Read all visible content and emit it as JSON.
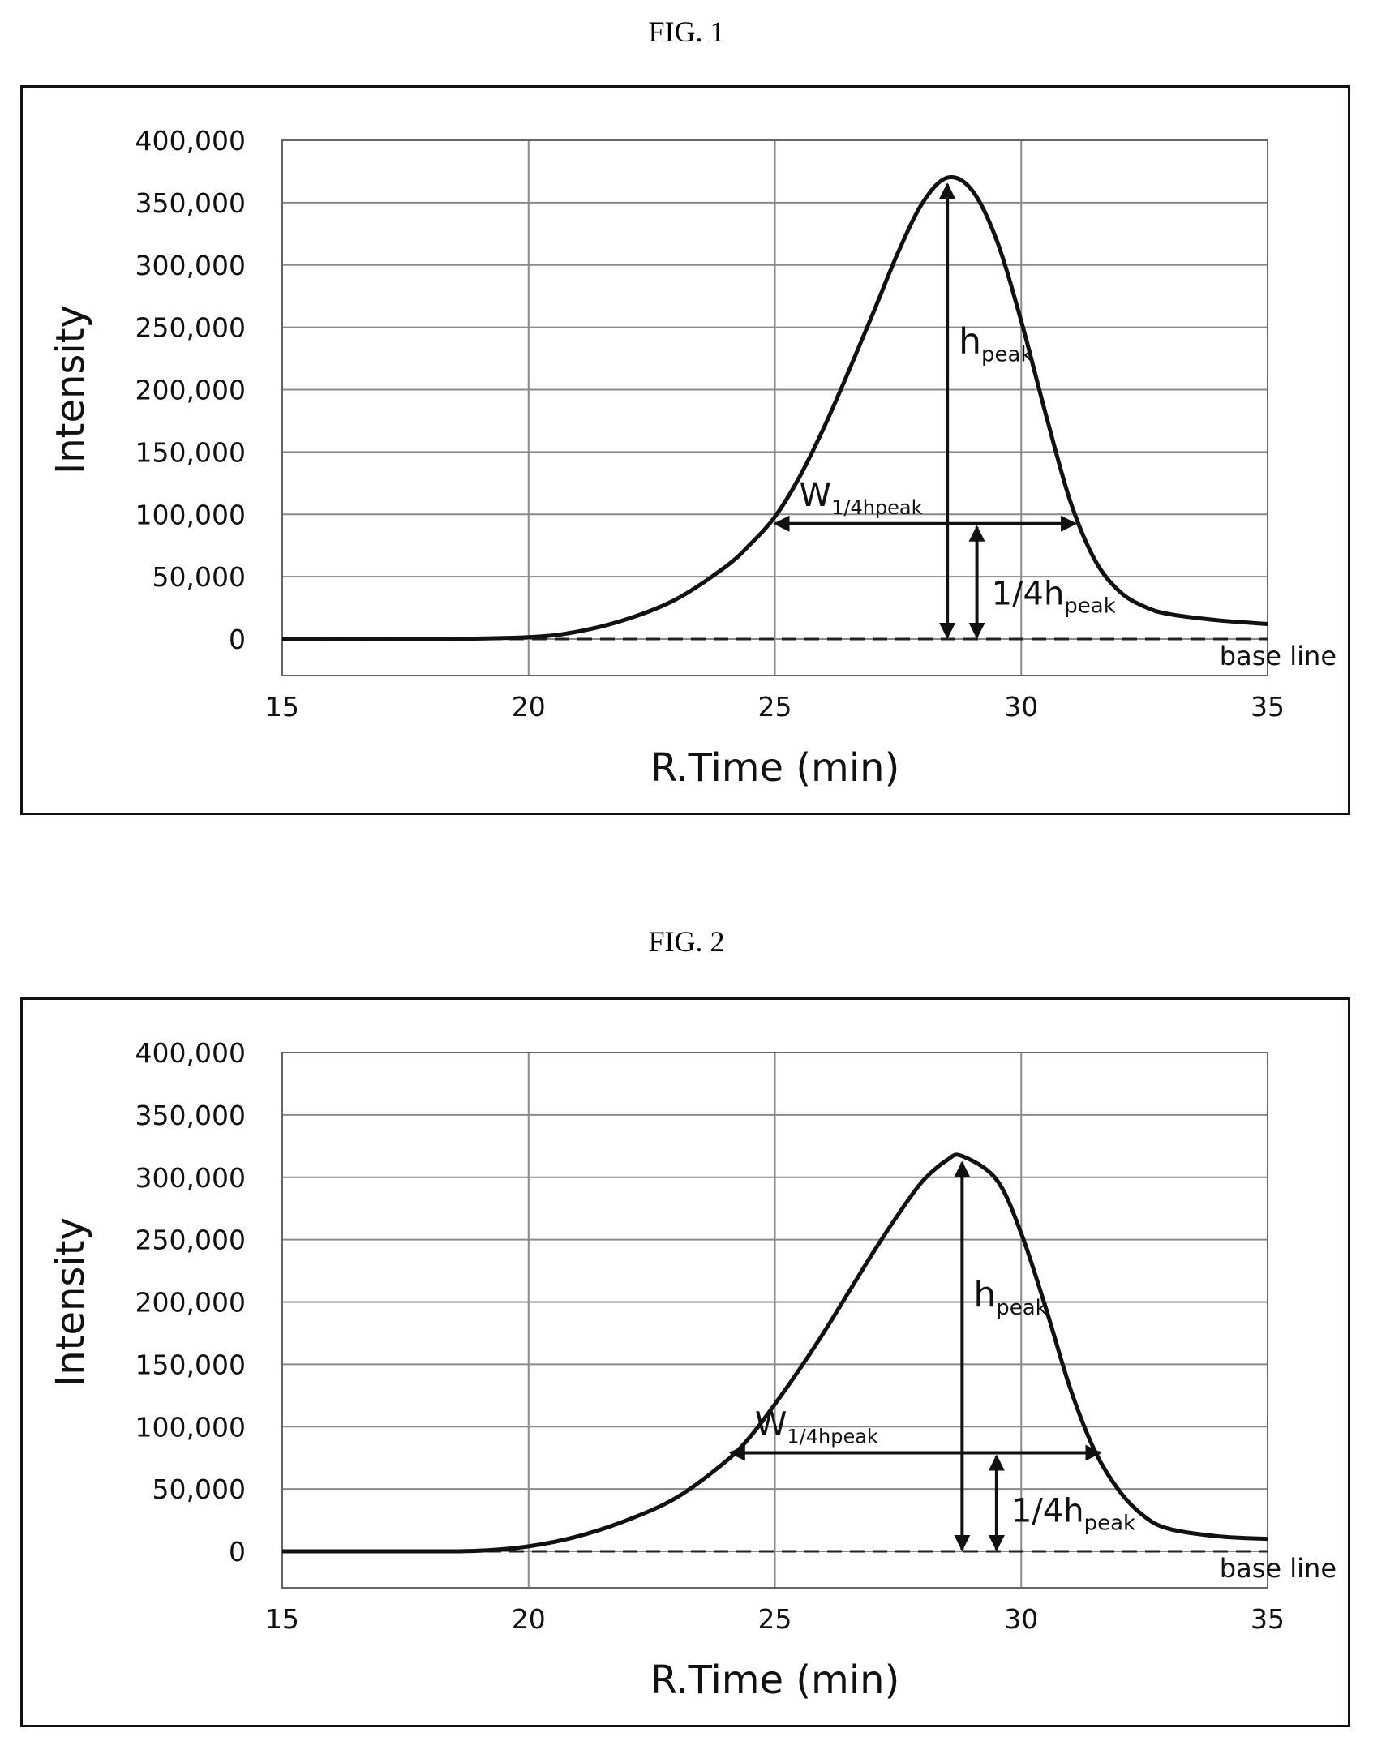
{
  "figures": [
    {
      "caption": "FIG. 1",
      "annotations": {
        "h_main": "h",
        "h_sub": "peak",
        "w_main": "W",
        "w_sub": "1/4hpeak",
        "q_main": "1/4h",
        "q_sub": "peak",
        "baseline": "base line"
      }
    },
    {
      "caption": "FIG. 2",
      "annotations": {
        "h_main": "h",
        "h_sub": "peak",
        "w_main": "W",
        "w_sub": "1/4hpeak",
        "q_main": "1/4h",
        "q_sub": "peak",
        "baseline": "base line"
      }
    }
  ],
  "chart_data": [
    {
      "type": "line",
      "xlabel": "R.Time (min)",
      "ylabel": "Intensity",
      "xlim": [
        15,
        35
      ],
      "ylim": [
        0,
        400000
      ],
      "x_ticks": [
        "15",
        "20",
        "25",
        "30",
        "35"
      ],
      "y_ticks": [
        "0",
        "50,000",
        "100,000",
        "150,000",
        "200,000",
        "250,000",
        "300,000",
        "350,000",
        "400,000"
      ],
      "grid": true,
      "peak_x": 28.5,
      "peak_height": 370000,
      "quarter_height": 92500,
      "quarter_width_x": [
        25.0,
        31.1
      ],
      "quarter_height_marker_x": 29.1,
      "x": [
        15,
        18,
        20,
        21,
        22,
        23,
        24,
        24.5,
        25,
        25.5,
        26,
        26.5,
        27,
        27.5,
        28,
        28.5,
        29,
        29.5,
        30,
        30.5,
        31,
        31.5,
        32,
        32.5,
        33,
        34,
        35
      ],
      "y": [
        0,
        0,
        1500,
        6000,
        16000,
        32000,
        58000,
        76000,
        98000,
        130000,
        170000,
        215000,
        262000,
        310000,
        350000,
        370000,
        360000,
        320000,
        255000,
        180000,
        110000,
        63000,
        38000,
        26000,
        20000,
        15000,
        12000
      ]
    },
    {
      "type": "line",
      "xlabel": "R.Time (min)",
      "ylabel": "Intensity",
      "xlim": [
        15,
        35
      ],
      "ylim": [
        0,
        400000
      ],
      "x_ticks": [
        "15",
        "20",
        "25",
        "30",
        "35"
      ],
      "y_ticks": [
        "0",
        "50,000",
        "100,000",
        "150,000",
        "200,000",
        "250,000",
        "300,000",
        "350,000",
        "400,000"
      ],
      "grid": true,
      "peak_x": 28.8,
      "peak_height": 317000,
      "quarter_height": 79000,
      "quarter_width_x": [
        24.1,
        31.6
      ],
      "quarter_height_marker_x": 29.5,
      "x": [
        15,
        18,
        19,
        20,
        21,
        22,
        23,
        24,
        24.5,
        25,
        25.5,
        26,
        26.5,
        27,
        27.5,
        28,
        28.5,
        28.8,
        29.5,
        30,
        30.5,
        31,
        31.5,
        32,
        32.5,
        33,
        34,
        35
      ],
      "y": [
        0,
        0,
        500,
        4000,
        12000,
        25000,
        43000,
        72000,
        92000,
        118000,
        146000,
        176000,
        208000,
        240000,
        270000,
        297000,
        314000,
        317000,
        298000,
        255000,
        195000,
        130000,
        80000,
        48000,
        28000,
        18000,
        12000,
        10000
      ]
    }
  ]
}
